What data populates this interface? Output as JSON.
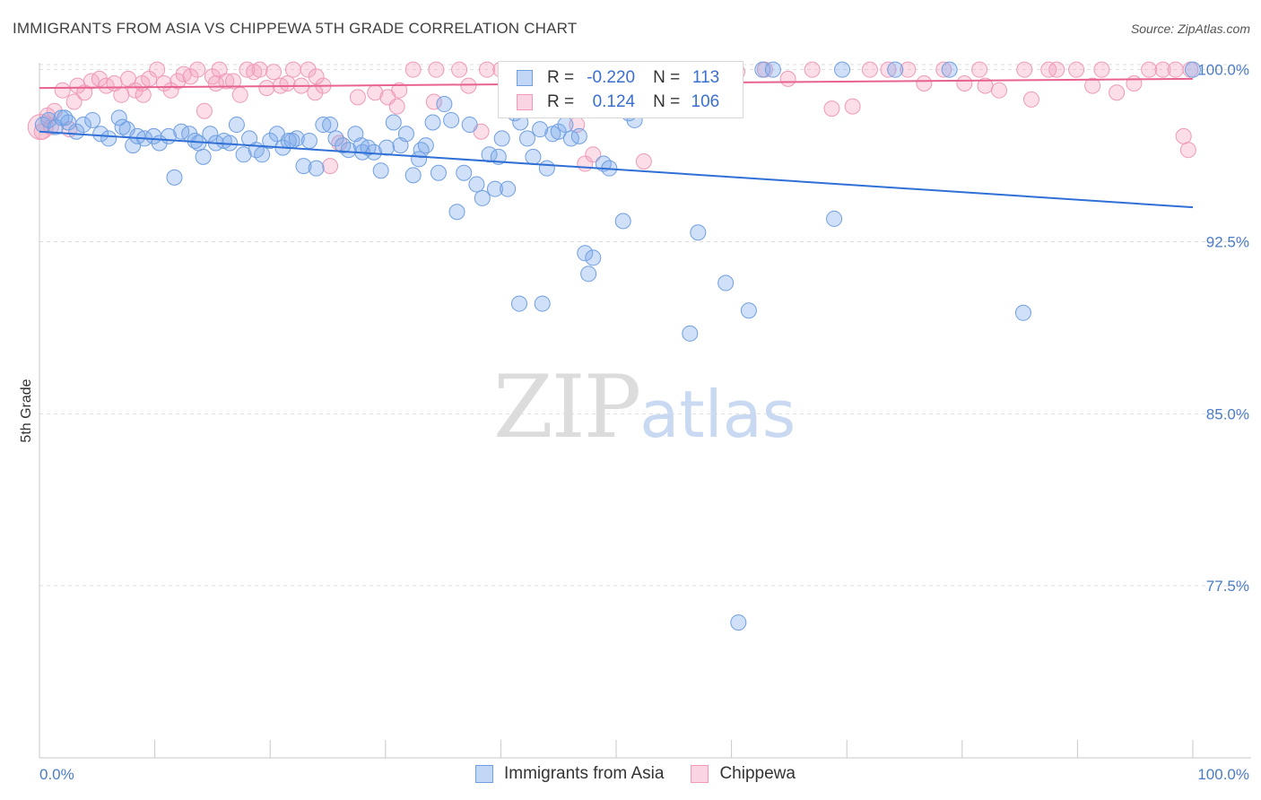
{
  "title": "IMMIGRANTS FROM ASIA VS CHIPPEWA 5TH GRADE CORRELATION CHART",
  "source": "Source: ZipAtlas.com",
  "watermark": {
    "zip": "ZIP",
    "atlas": "atlas"
  },
  "legend": {
    "rows": [
      {
        "r_label": "R = ",
        "r_value": "-0.220",
        "n_label": "N = ",
        "n_value": "113"
      },
      {
        "r_label": "R = ",
        "r_value": "0.124",
        "n_label": "N = ",
        "n_value": "106"
      }
    ]
  },
  "bottom_legend": {
    "series1": "Immigrants from Asia",
    "series2": "Chippewa"
  },
  "colors": {
    "blue_fill": "rgba(120,166,234,0.35)",
    "blue_stroke": "#6f9fe0",
    "blue_line": "#2f6fd6",
    "pink_fill": "rgba(244,160,190,0.35)",
    "pink_stroke": "#ee9ab8",
    "pink_line": "#e8628f",
    "tick_text": "#4a7cc9",
    "grid": "#dddddd"
  },
  "chart_data": {
    "type": "scatter",
    "title": "IMMIGRANTS FROM ASIA VS CHIPPEWA 5TH GRADE CORRELATION CHART",
    "xlabel": "",
    "ylabel": "5th Grade",
    "xlim": [
      0,
      100
    ],
    "ylim": [
      70.0,
      100.3
    ],
    "x_tick_labels": [
      "0.0%",
      "100.0%"
    ],
    "y_ticks": [
      {
        "value": 100.0,
        "label": "100.0%"
      },
      {
        "value": 92.5,
        "label": "92.5%"
      },
      {
        "value": 85.0,
        "label": "85.0%"
      },
      {
        "value": 77.5,
        "label": "77.5%"
      }
    ],
    "grid": true,
    "series": [
      {
        "name": "Immigrants from Asia",
        "color": "#6f9fe0",
        "trend": {
          "x": [
            0,
            100
          ],
          "y": [
            97.3,
            94.0
          ]
        },
        "points": [
          [
            0.3,
            97.6
          ],
          [
            0.8,
            97.8
          ],
          [
            1.4,
            97.5
          ],
          [
            1.9,
            97.9
          ],
          [
            2.5,
            97.7
          ],
          [
            3.2,
            97.3
          ],
          [
            3.8,
            97.6
          ],
          [
            4.6,
            97.8
          ],
          [
            5.3,
            97.2
          ],
          [
            6.0,
            97.0
          ],
          [
            6.9,
            97.9
          ],
          [
            7.6,
            97.4
          ],
          [
            8.1,
            96.7
          ],
          [
            8.5,
            97.1
          ],
          [
            9.1,
            97.0
          ],
          [
            9.9,
            97.1
          ],
          [
            10.4,
            96.8
          ],
          [
            11.2,
            97.1
          ],
          [
            11.7,
            95.3
          ],
          [
            12.3,
            97.3
          ],
          [
            13.0,
            97.2
          ],
          [
            13.5,
            96.9
          ],
          [
            14.2,
            96.2
          ],
          [
            14.8,
            97.2
          ],
          [
            15.3,
            96.8
          ],
          [
            16.0,
            96.9
          ],
          [
            16.5,
            96.8
          ],
          [
            17.1,
            97.6
          ],
          [
            17.7,
            96.3
          ],
          [
            18.2,
            97.0
          ],
          [
            18.8,
            96.5
          ],
          [
            19.3,
            96.3
          ],
          [
            20.0,
            96.9
          ],
          [
            20.6,
            97.2
          ],
          [
            21.1,
            96.6
          ],
          [
            21.6,
            96.9
          ],
          [
            22.3,
            97.0
          ],
          [
            22.9,
            95.8
          ],
          [
            23.4,
            96.9
          ],
          [
            24.0,
            95.7
          ],
          [
            24.6,
            97.6
          ],
          [
            25.2,
            97.6
          ],
          [
            25.7,
            97.0
          ],
          [
            26.3,
            96.7
          ],
          [
            26.8,
            96.5
          ],
          [
            27.4,
            97.2
          ],
          [
            28.0,
            96.4
          ],
          [
            28.5,
            96.6
          ],
          [
            29.0,
            96.4
          ],
          [
            29.6,
            95.6
          ],
          [
            30.1,
            96.6
          ],
          [
            30.7,
            97.7
          ],
          [
            31.3,
            96.7
          ],
          [
            31.8,
            97.2
          ],
          [
            32.4,
            95.4
          ],
          [
            32.9,
            96.1
          ],
          [
            33.5,
            96.7
          ],
          [
            34.1,
            97.7
          ],
          [
            34.6,
            95.5
          ],
          [
            35.1,
            98.5
          ],
          [
            35.7,
            97.8
          ],
          [
            36.2,
            93.8
          ],
          [
            36.8,
            95.5
          ],
          [
            37.3,
            97.6
          ],
          [
            37.9,
            95.0
          ],
          [
            38.4,
            94.4
          ],
          [
            39.0,
            96.3
          ],
          [
            39.5,
            94.8
          ],
          [
            40.1,
            97.0
          ],
          [
            40.6,
            94.8
          ],
          [
            41.2,
            98.1
          ],
          [
            41.7,
            97.7
          ],
          [
            42.3,
            97.0
          ],
          [
            42.8,
            96.2
          ],
          [
            43.4,
            97.4
          ],
          [
            44.0,
            95.7
          ],
          [
            44.5,
            97.2
          ],
          [
            45.0,
            97.3
          ],
          [
            45.6,
            97.6
          ],
          [
            46.1,
            97.0
          ],
          [
            46.8,
            97.1
          ],
          [
            47.3,
            92.0
          ],
          [
            47.6,
            91.1
          ],
          [
            48.0,
            91.8
          ],
          [
            41.6,
            89.8
          ],
          [
            43.6,
            89.8
          ],
          [
            48.9,
            95.9
          ],
          [
            49.4,
            95.7
          ],
          [
            50.6,
            93.4
          ],
          [
            51.1,
            98.1
          ],
          [
            51.6,
            97.8
          ],
          [
            53.4,
            100.0
          ],
          [
            54.2,
            100.0
          ],
          [
            56.4,
            88.5
          ],
          [
            57.1,
            92.9
          ],
          [
            59.5,
            90.7
          ],
          [
            61.5,
            89.5
          ],
          [
            60.6,
            75.9
          ],
          [
            62.7,
            100.0
          ],
          [
            63.6,
            100.0
          ],
          [
            68.9,
            93.5
          ],
          [
            69.6,
            100.0
          ],
          [
            74.2,
            100.0
          ],
          [
            78.9,
            100.0
          ],
          [
            85.3,
            89.4
          ],
          [
            100.0,
            100.0
          ],
          [
            2.2,
            97.9
          ],
          [
            7.2,
            97.5
          ],
          [
            13.8,
            96.8
          ],
          [
            21.9,
            96.9
          ],
          [
            27.9,
            96.7
          ],
          [
            33.1,
            96.5
          ],
          [
            39.8,
            96.2
          ]
        ]
      },
      {
        "name": "Chippewa",
        "color": "#ee9ab8",
        "trend": {
          "x": [
            0,
            100
          ],
          "y": [
            99.2,
            99.6
          ]
        },
        "points": [
          [
            0.2,
            97.3
          ],
          [
            0.7,
            98.0
          ],
          [
            1.3,
            98.2
          ],
          [
            2.0,
            99.1
          ],
          [
            2.6,
            97.4
          ],
          [
            3.3,
            99.3
          ],
          [
            3.9,
            99.0
          ],
          [
            4.5,
            99.5
          ],
          [
            5.2,
            99.6
          ],
          [
            5.8,
            99.3
          ],
          [
            6.5,
            99.4
          ],
          [
            7.1,
            98.9
          ],
          [
            7.7,
            99.6
          ],
          [
            8.3,
            99.1
          ],
          [
            8.9,
            99.4
          ],
          [
            9.5,
            99.6
          ],
          [
            10.2,
            100.0
          ],
          [
            10.8,
            99.4
          ],
          [
            11.4,
            99.1
          ],
          [
            12.0,
            99.5
          ],
          [
            12.5,
            99.8
          ],
          [
            13.1,
            99.7
          ],
          [
            13.7,
            100.0
          ],
          [
            14.3,
            98.2
          ],
          [
            15.0,
            99.7
          ],
          [
            15.6,
            100.0
          ],
          [
            16.2,
            99.5
          ],
          [
            16.8,
            99.5
          ],
          [
            17.4,
            98.9
          ],
          [
            18.0,
            100.0
          ],
          [
            18.6,
            99.9
          ],
          [
            19.1,
            100.0
          ],
          [
            19.7,
            99.2
          ],
          [
            20.3,
            99.9
          ],
          [
            20.9,
            99.3
          ],
          [
            21.5,
            99.4
          ],
          [
            22.0,
            100.0
          ],
          [
            22.7,
            99.3
          ],
          [
            23.3,
            100.0
          ],
          [
            23.9,
            99.0
          ],
          [
            24.6,
            99.3
          ],
          [
            25.2,
            95.8
          ],
          [
            26.0,
            96.8
          ],
          [
            27.6,
            98.8
          ],
          [
            29.1,
            99.0
          ],
          [
            30.2,
            98.8
          ],
          [
            31.0,
            98.4
          ],
          [
            34.2,
            98.6
          ],
          [
            32.4,
            100.0
          ],
          [
            34.4,
            100.0
          ],
          [
            36.4,
            100.0
          ],
          [
            37.2,
            99.3
          ],
          [
            38.3,
            97.3
          ],
          [
            40.0,
            100.0
          ],
          [
            41.5,
            99.6
          ],
          [
            43.0,
            100.0
          ],
          [
            44.6,
            98.3
          ],
          [
            45.6,
            100.0
          ],
          [
            46.6,
            97.6
          ],
          [
            47.3,
            95.9
          ],
          [
            48.0,
            96.3
          ],
          [
            50.0,
            100.0
          ],
          [
            52.0,
            98.8
          ],
          [
            52.4,
            96.0
          ],
          [
            54.0,
            100.0
          ],
          [
            56.3,
            100.0
          ],
          [
            58.4,
            100.0
          ],
          [
            60.5,
            99.9
          ],
          [
            62.9,
            100.0
          ],
          [
            64.9,
            99.6
          ],
          [
            67.0,
            100.0
          ],
          [
            68.7,
            98.3
          ],
          [
            70.5,
            98.4
          ],
          [
            72.0,
            100.0
          ],
          [
            73.6,
            100.0
          ],
          [
            75.3,
            100.0
          ],
          [
            76.7,
            99.4
          ],
          [
            78.4,
            100.0
          ],
          [
            80.2,
            99.4
          ],
          [
            81.5,
            100.0
          ],
          [
            82.0,
            99.3
          ],
          [
            83.2,
            99.1
          ],
          [
            85.4,
            100.0
          ],
          [
            86.0,
            98.7
          ],
          [
            87.5,
            100.0
          ],
          [
            88.2,
            100.0
          ],
          [
            89.9,
            100.0
          ],
          [
            91.3,
            99.3
          ],
          [
            92.1,
            100.0
          ],
          [
            93.4,
            99.0
          ],
          [
            94.9,
            99.4
          ],
          [
            96.2,
            100.0
          ],
          [
            97.4,
            100.0
          ],
          [
            98.5,
            100.0
          ],
          [
            99.2,
            97.1
          ],
          [
            99.6,
            96.5
          ],
          [
            99.8,
            100.0
          ],
          [
            1.0,
            97.5
          ],
          [
            3.0,
            98.6
          ],
          [
            9.0,
            98.9
          ],
          [
            15.3,
            99.4
          ],
          [
            24.0,
            99.7
          ],
          [
            31.2,
            99.1
          ],
          [
            38.8,
            100.0
          ],
          [
            48.7,
            99.3
          ],
          [
            58.0,
            99.6
          ]
        ]
      }
    ]
  }
}
